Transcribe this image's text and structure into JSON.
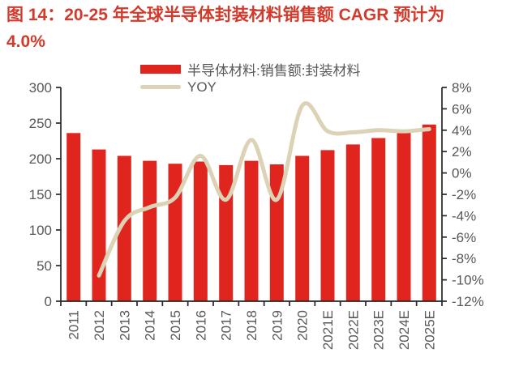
{
  "title": {
    "line1": "图 14：20-25 年全球半导体封装材料销售额 CAGR 预计为",
    "line2": "4.0%",
    "color": "#d43a2b"
  },
  "chart_data": {
    "type": "bar",
    "subtype": "bar-with-line-overlay",
    "title": "图 14：20-25 年全球半导体封装材料销售额 CAGR 预计为 4.0%",
    "categories": [
      "2011",
      "2012",
      "2013",
      "2014",
      "2015",
      "2016",
      "2017",
      "2018",
      "2019",
      "2020",
      "2021E",
      "2022E",
      "2023E",
      "2024E",
      "2025E"
    ],
    "series": [
      {
        "name": "半导体材料:销售额:封装材料",
        "kind": "bar",
        "axis": "left",
        "color": "#e0251f",
        "values": [
          236,
          213,
          204,
          197,
          193,
          196,
          191,
          197,
          192,
          204,
          212,
          220,
          229,
          238,
          248
        ]
      },
      {
        "name": "YOY",
        "kind": "line",
        "axis": "right",
        "color": "#dcd2b6",
        "values": [
          null,
          -9.6,
          -4.5,
          -3.2,
          -2.3,
          1.6,
          -2.5,
          3.1,
          -2.5,
          6.3,
          3.9,
          3.8,
          4.0,
          3.9,
          4.1
        ]
      }
    ],
    "left_axis": {
      "min": 0,
      "max": 300,
      "step": 50,
      "tick_labels": [
        "300",
        "250",
        "200",
        "150",
        "100",
        "50",
        "0"
      ]
    },
    "right_axis": {
      "min": -12,
      "max": 8,
      "step": 2,
      "tick_labels": [
        "8%",
        "6%",
        "4%",
        "2%",
        "0%",
        "-2%",
        "-4%",
        "-6%",
        "-8%",
        "-10%",
        "-12%"
      ]
    },
    "grid": false,
    "legend_position": "top-center",
    "axis_color": "#262626",
    "tick_text_color": "#595757"
  }
}
